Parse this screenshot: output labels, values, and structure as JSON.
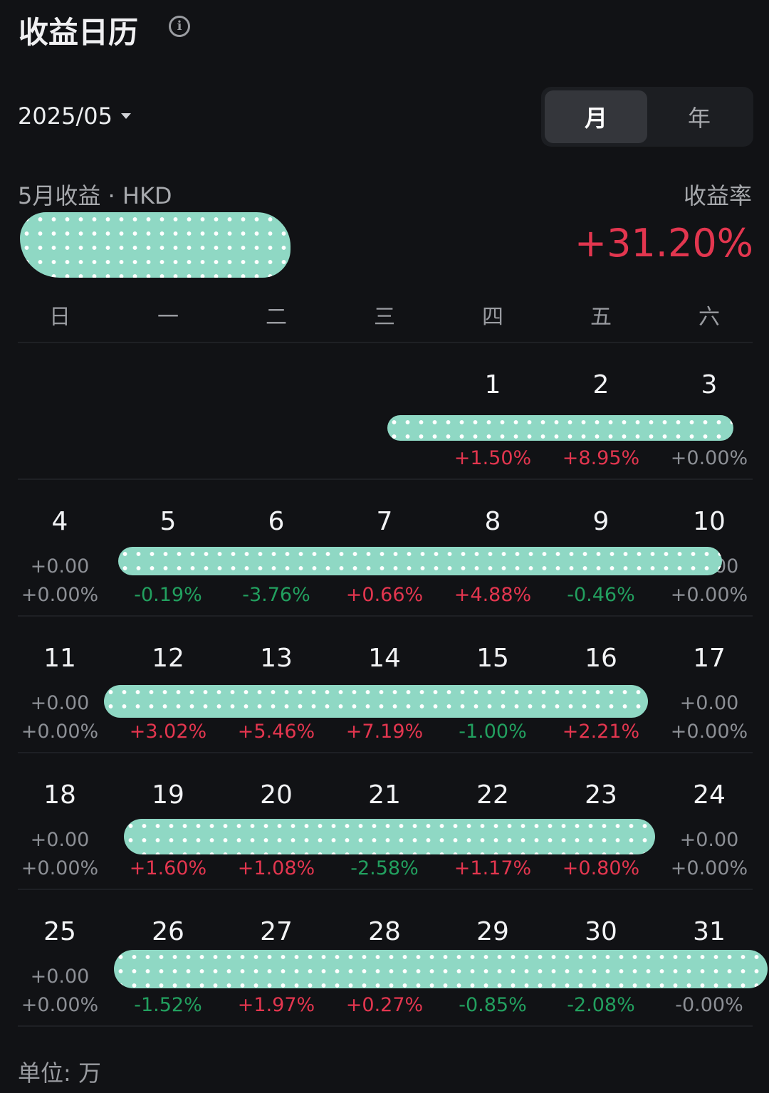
{
  "header": {
    "title": "收益日历",
    "info_icon": "info-circle-icon"
  },
  "month_picker": {
    "value": "2025/05"
  },
  "view_toggle": {
    "options": [
      "月",
      "年"
    ],
    "selected": "月"
  },
  "summary": {
    "profit_label": "5月收益 · HKD",
    "profit_value": null,
    "rate_label": "收益率",
    "rate_value": "+31.20%"
  },
  "weekdays": [
    "日",
    "一",
    "二",
    "三",
    "四",
    "五",
    "六"
  ],
  "colors": {
    "background": "#111215",
    "gain": "#e3364f",
    "loss": "#22a05f",
    "neutral": "#8c8f95",
    "redaction": "#8fd8c4"
  },
  "first_weekday": 4,
  "days": [
    {
      "day": "1",
      "amount": null,
      "pct": "+1.50%",
      "trend": "up"
    },
    {
      "day": "2",
      "amount": null,
      "pct": "+8.95%",
      "trend": "up"
    },
    {
      "day": "3",
      "amount": null,
      "pct": "+0.00%",
      "trend": "flat"
    },
    {
      "day": "4",
      "amount": "+0.00",
      "pct": "+0.00%",
      "trend": "flat"
    },
    {
      "day": "5",
      "amount": null,
      "pct": "-0.19%",
      "trend": "down"
    },
    {
      "day": "6",
      "amount": null,
      "pct": "-3.76%",
      "trend": "down"
    },
    {
      "day": "7",
      "amount": null,
      "pct": "+0.66%",
      "trend": "up"
    },
    {
      "day": "8",
      "amount": null,
      "pct": "+4.88%",
      "trend": "up"
    },
    {
      "day": "9",
      "amount": null,
      "pct": "-0.46%",
      "trend": "down"
    },
    {
      "day": "10",
      "amount": "+0.00",
      "pct": "+0.00%",
      "trend": "flat"
    },
    {
      "day": "11",
      "amount": "+0.00",
      "pct": "+0.00%",
      "trend": "flat"
    },
    {
      "day": "12",
      "amount": null,
      "pct": "+3.02%",
      "trend": "up"
    },
    {
      "day": "13",
      "amount": null,
      "pct": "+5.46%",
      "trend": "up"
    },
    {
      "day": "14",
      "amount": null,
      "pct": "+7.19%",
      "trend": "up"
    },
    {
      "day": "15",
      "amount": null,
      "pct": "-1.00%",
      "trend": "down"
    },
    {
      "day": "16",
      "amount": null,
      "pct": "+2.21%",
      "trend": "up"
    },
    {
      "day": "17",
      "amount": "+0.00",
      "pct": "+0.00%",
      "trend": "flat"
    },
    {
      "day": "18",
      "amount": "+0.00",
      "pct": "+0.00%",
      "trend": "flat"
    },
    {
      "day": "19",
      "amount": null,
      "pct": "+1.60%",
      "trend": "up"
    },
    {
      "day": "20",
      "amount": null,
      "pct": "+1.08%",
      "trend": "up"
    },
    {
      "day": "21",
      "amount": null,
      "pct": "-2.58%",
      "trend": "down"
    },
    {
      "day": "22",
      "amount": null,
      "pct": "+1.17%",
      "trend": "up"
    },
    {
      "day": "23",
      "amount": null,
      "pct": "+0.80%",
      "trend": "up"
    },
    {
      "day": "24",
      "amount": "+0.00",
      "pct": "+0.00%",
      "trend": "flat"
    },
    {
      "day": "25",
      "amount": "+0.00",
      "pct": "+0.00%",
      "trend": "flat"
    },
    {
      "day": "26",
      "amount": null,
      "pct": "-1.52%",
      "trend": "down"
    },
    {
      "day": "27",
      "amount": null,
      "pct": "+1.97%",
      "trend": "up"
    },
    {
      "day": "28",
      "amount": null,
      "pct": "+0.27%",
      "trend": "up"
    },
    {
      "day": "29",
      "amount": null,
      "pct": "-0.85%",
      "trend": "down"
    },
    {
      "day": "30",
      "amount": null,
      "pct": "-2.08%",
      "trend": "down"
    },
    {
      "day": "31",
      "amount": null,
      "pct": "-0.00%",
      "trend": "flat"
    }
  ],
  "footer": {
    "unit": "单位: 万"
  }
}
